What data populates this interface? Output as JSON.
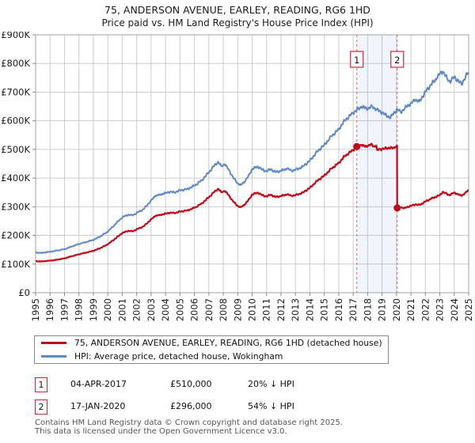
{
  "title": "75, ANDERSON AVENUE, EARLEY, READING, RG6 1HD",
  "subtitle": "Price paid vs. HM Land Registry's House Price Index (HPI)",
  "chart_data": {
    "type": "line",
    "x_axis": {
      "min": 1995,
      "max": 2025,
      "ticks": [
        1995,
        1996,
        1997,
        1998,
        1999,
        2000,
        2001,
        2002,
        2003,
        2004,
        2005,
        2006,
        2007,
        2008,
        2009,
        2010,
        2011,
        2012,
        2013,
        2014,
        2015,
        2016,
        2017,
        2018,
        2019,
        2020,
        2021,
        2022,
        2023,
        2024,
        2025
      ]
    },
    "y_axis": {
      "min": 0,
      "max": 900000,
      "tick_step": 100000,
      "tick_labels": [
        "£0",
        "£100K",
        "£200K",
        "£300K",
        "£400K",
        "£500K",
        "£600K",
        "£700K",
        "£800K",
        "£900K"
      ]
    },
    "grid": true,
    "colors": {
      "property": "#bf0a1c",
      "hpi": "#6089c2",
      "band": "rgba(110,145,215,0.10)",
      "dashed": "#e06666",
      "grid": "#cccccc",
      "border": "#a0a0a0",
      "marker_box_border": "#cc2936"
    },
    "band": {
      "from": 2017.25,
      "to": 2020.05
    },
    "sales": [
      {
        "label": "1",
        "x": 2017.25,
        "price": 510000
      },
      {
        "label": "2",
        "x": 2020.05,
        "price": 296000
      }
    ],
    "series": [
      {
        "id": "hpi",
        "name": "HPI: Average price, detached house, Wokingham",
        "points": [
          [
            1995.0,
            140000
          ],
          [
            1995.4,
            139000
          ],
          [
            1996.0,
            143000
          ],
          [
            1996.5,
            147000
          ],
          [
            1997.0,
            152000
          ],
          [
            1997.5,
            161000
          ],
          [
            1998.0,
            170000
          ],
          [
            1998.5,
            177000
          ],
          [
            1999.0,
            184000
          ],
          [
            1999.5,
            197000
          ],
          [
            2000.0,
            213000
          ],
          [
            2000.5,
            238000
          ],
          [
            2001.0,
            263000
          ],
          [
            2001.4,
            272000
          ],
          [
            2001.7,
            270000
          ],
          [
            2002.0,
            278000
          ],
          [
            2002.5,
            292000
          ],
          [
            2003.0,
            322000
          ],
          [
            2003.3,
            338000
          ],
          [
            2003.6,
            342000
          ],
          [
            2004.0,
            348000
          ],
          [
            2004.3,
            352000
          ],
          [
            2004.6,
            350000
          ],
          [
            2005.0,
            357000
          ],
          [
            2005.5,
            362000
          ],
          [
            2006.0,
            373000
          ],
          [
            2006.5,
            392000
          ],
          [
            2007.0,
            420000
          ],
          [
            2007.4,
            445000
          ],
          [
            2007.65,
            457000
          ],
          [
            2007.85,
            442000
          ],
          [
            2008.1,
            448000
          ],
          [
            2008.4,
            428000
          ],
          [
            2008.7,
            400000
          ],
          [
            2009.0,
            382000
          ],
          [
            2009.2,
            376000
          ],
          [
            2009.5,
            388000
          ],
          [
            2009.8,
            412000
          ],
          [
            2010.0,
            432000
          ],
          [
            2010.4,
            440000
          ],
          [
            2010.7,
            429000
          ],
          [
            2011.0,
            424000
          ],
          [
            2011.3,
            431000
          ],
          [
            2011.6,
            421000
          ],
          [
            2012.0,
            425000
          ],
          [
            2012.4,
            433000
          ],
          [
            2012.7,
            427000
          ],
          [
            2013.0,
            428000
          ],
          [
            2013.5,
            440000
          ],
          [
            2014.0,
            461000
          ],
          [
            2014.5,
            492000
          ],
          [
            2015.0,
            516000
          ],
          [
            2015.5,
            546000
          ],
          [
            2016.0,
            571000
          ],
          [
            2016.4,
            600000
          ],
          [
            2016.8,
            619000
          ],
          [
            2017.0,
            627000
          ],
          [
            2017.25,
            638000
          ],
          [
            2017.6,
            649000
          ],
          [
            2018.0,
            641000
          ],
          [
            2018.3,
            651000
          ],
          [
            2018.6,
            639000
          ],
          [
            2019.0,
            629000
          ],
          [
            2019.3,
            618000
          ],
          [
            2019.6,
            612000
          ],
          [
            2019.8,
            626000
          ],
          [
            2020.05,
            641000
          ],
          [
            2020.3,
            629000
          ],
          [
            2020.6,
            646000
          ],
          [
            2021.0,
            661000
          ],
          [
            2021.3,
            673000
          ],
          [
            2021.6,
            668000
          ],
          [
            2022.0,
            701000
          ],
          [
            2022.4,
            726000
          ],
          [
            2022.8,
            749000
          ],
          [
            2023.0,
            763000
          ],
          [
            2023.2,
            772000
          ],
          [
            2023.5,
            749000
          ],
          [
            2023.7,
            736000
          ],
          [
            2024.0,
            753000
          ],
          [
            2024.3,
            739000
          ],
          [
            2024.5,
            727000
          ],
          [
            2024.8,
            756000
          ],
          [
            2025.0,
            770000
          ]
        ]
      },
      {
        "id": "property",
        "name": "75, ANDERSON AVENUE, EARLEY, READING, RG6 1HD (detached house)",
        "points": [
          [
            1995.0,
            110000
          ],
          [
            1995.4,
            109000
          ],
          [
            1996.0,
            112000
          ],
          [
            1996.5,
            115000
          ],
          [
            1997.0,
            120000
          ],
          [
            1997.5,
            127000
          ],
          [
            1998.0,
            134000
          ],
          [
            1998.5,
            140000
          ],
          [
            1999.0,
            146000
          ],
          [
            1999.5,
            156000
          ],
          [
            2000.0,
            169000
          ],
          [
            2000.5,
            188000
          ],
          [
            2001.0,
            208000
          ],
          [
            2001.4,
            216000
          ],
          [
            2001.7,
            214000
          ],
          [
            2002.0,
            221000
          ],
          [
            2002.5,
            232000
          ],
          [
            2003.0,
            256000
          ],
          [
            2003.3,
            268000
          ],
          [
            2003.6,
            271000
          ],
          [
            2004.0,
            276000
          ],
          [
            2004.3,
            279000
          ],
          [
            2004.6,
            278000
          ],
          [
            2005.0,
            283000
          ],
          [
            2005.5,
            287000
          ],
          [
            2006.0,
            296000
          ],
          [
            2006.5,
            311000
          ],
          [
            2007.0,
            333000
          ],
          [
            2007.4,
            353000
          ],
          [
            2007.65,
            363000
          ],
          [
            2007.85,
            351000
          ],
          [
            2008.1,
            355000
          ],
          [
            2008.4,
            339000
          ],
          [
            2008.7,
            317000
          ],
          [
            2009.0,
            303000
          ],
          [
            2009.2,
            298000
          ],
          [
            2009.5,
            308000
          ],
          [
            2009.8,
            327000
          ],
          [
            2010.0,
            343000
          ],
          [
            2010.4,
            349000
          ],
          [
            2010.7,
            340000
          ],
          [
            2011.0,
            336000
          ],
          [
            2011.3,
            342000
          ],
          [
            2011.6,
            334000
          ],
          [
            2012.0,
            337000
          ],
          [
            2012.4,
            343000
          ],
          [
            2012.7,
            339000
          ],
          [
            2013.0,
            340000
          ],
          [
            2013.5,
            349000
          ],
          [
            2014.0,
            366000
          ],
          [
            2014.5,
            390000
          ],
          [
            2015.0,
            409000
          ],
          [
            2015.5,
            433000
          ],
          [
            2016.0,
            453000
          ],
          [
            2016.4,
            476000
          ],
          [
            2016.8,
            491000
          ],
          [
            2017.0,
            497000
          ],
          [
            2017.25,
            510000
          ],
          [
            2017.6,
            516000
          ],
          [
            2017.8,
            509000
          ],
          [
            2018.0,
            512000
          ],
          [
            2018.2,
            517000
          ],
          [
            2018.45,
            511000
          ],
          [
            2018.6,
            514000
          ],
          [
            2018.66,
            498000
          ],
          [
            2018.9,
            501000
          ],
          [
            2019.2,
            503000
          ],
          [
            2019.5,
            506000
          ],
          [
            2019.7,
            504000
          ],
          [
            2019.9,
            507000
          ],
          [
            2020.0,
            513000
          ],
          [
            2020.04,
            513000
          ],
          [
            2020.05,
            296000
          ],
          [
            2020.3,
            298000
          ],
          [
            2020.55,
            295000
          ],
          [
            2020.8,
            300000
          ],
          [
            2021.0,
            303000
          ],
          [
            2021.3,
            308000
          ],
          [
            2021.6,
            306000
          ],
          [
            2022.0,
            318000
          ],
          [
            2022.4,
            328000
          ],
          [
            2022.8,
            336000
          ],
          [
            2023.0,
            340000
          ],
          [
            2023.2,
            352000
          ],
          [
            2023.5,
            344000
          ],
          [
            2023.7,
            340000
          ],
          [
            2024.0,
            350000
          ],
          [
            2024.3,
            342000
          ],
          [
            2024.5,
            338000
          ],
          [
            2024.8,
            350000
          ],
          [
            2025.0,
            358000
          ]
        ]
      }
    ]
  },
  "legend": {
    "items": [
      {
        "label": "75, ANDERSON AVENUE, EARLEY, READING, RG6 1HD (detached house)",
        "color": "#bf0a1c"
      },
      {
        "label": "HPI: Average price, detached house, Wokingham",
        "color": "#6089c2"
      }
    ]
  },
  "annotations": [
    {
      "num": "1",
      "date": "04-APR-2017",
      "price": "£510,000",
      "hpi_delta": "20% ↓ HPI"
    },
    {
      "num": "2",
      "date": "17-JAN-2020",
      "price": "£296,000",
      "hpi_delta": "54% ↓ HPI"
    }
  ],
  "footer": {
    "line1": "Contains HM Land Registry data © Crown copyright and database right 2025.",
    "line2": "This data is licensed under the Open Government Licence v3.0."
  }
}
